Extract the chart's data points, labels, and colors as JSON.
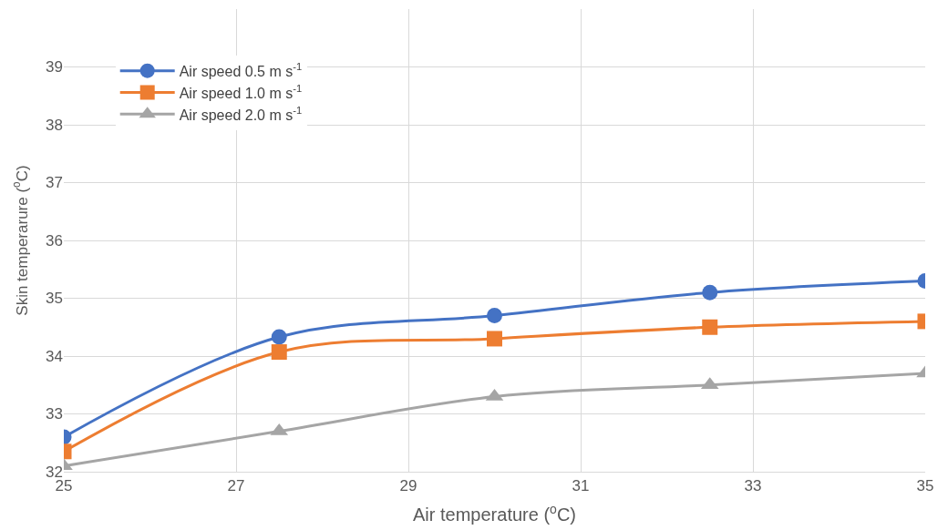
{
  "chart_data": {
    "type": "line",
    "xlabel": "Air temperature ($^{o}$C)",
    "ylabel": "Skin temperarure ($^{o}$C)",
    "x": [
      25,
      27.5,
      30,
      32.5,
      35
    ],
    "series": [
      {
        "name": "Air speed 0.5 m s$^{-1}$",
        "color": "#4472c4",
        "marker": "circle",
        "values": [
          32.6,
          34.33,
          34.7,
          35.1,
          35.3
        ]
      },
      {
        "name": "Air speed 1.0 m s$^{-1}$",
        "color": "#ed7d31",
        "marker": "square",
        "values": [
          32.35,
          34.07,
          34.3,
          34.5,
          34.6
        ]
      },
      {
        "name": "Air speed 2.0 m s$^{-1}$",
        "color": "#a5a5a5",
        "marker": "triangle",
        "values": [
          32.1,
          32.7,
          33.3,
          33.5,
          33.7
        ]
      }
    ],
    "xlim": [
      25,
      35
    ],
    "xticks": [
      25,
      27,
      29,
      31,
      33,
      35
    ],
    "ylim": [
      32,
      40
    ],
    "yticks": [
      32,
      33,
      34,
      35,
      36,
      37,
      38,
      39
    ],
    "grid": true,
    "legend": "top left",
    "line_style": "solid"
  }
}
